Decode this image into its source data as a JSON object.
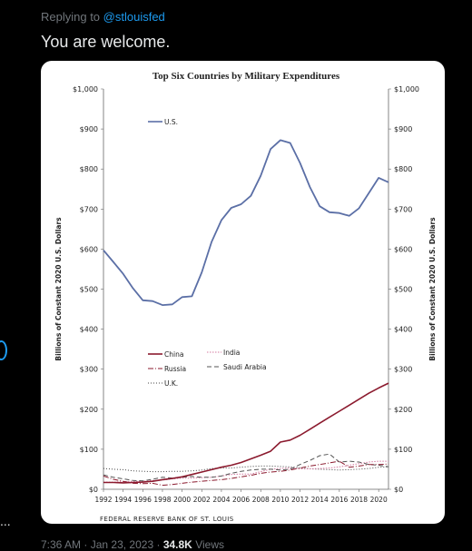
{
  "tweet": {
    "reply_prefix": "Replying to",
    "reply_handle": "@stlouisfed",
    "text": "You are welcome.",
    "time": "7:36 AM",
    "sep": "·",
    "date": "Jan 23, 2023",
    "views_count": "34.8K",
    "views_label": "Views",
    "side_ellipsis": "..."
  },
  "figure_credit": "FEDERAL RESERVE BANK OF ST. LOUIS",
  "colors": {
    "background": "#000000",
    "link": "#1d9bf0",
    "us": "#5b6fa6",
    "china": "#8b1a2e",
    "russia": "#8b1a2e",
    "india": "#d47aa0",
    "uk": "#444444",
    "saudi": "#555555"
  },
  "chart_data": {
    "type": "line",
    "title": "Top Six Countries by Military Expenditures",
    "xlabel": "",
    "ylabel": "Billions of Constant 2020 U.S. Dollars",
    "ylim": [
      0,
      1000
    ],
    "xlim": [
      1992,
      2021
    ],
    "yticks": [
      "$0",
      "$100",
      "$200",
      "$300",
      "$400",
      "$500",
      "$600",
      "$700",
      "$800",
      "$900",
      "$1,000"
    ],
    "xticks": [
      1992,
      1994,
      1996,
      1998,
      2000,
      2002,
      2004,
      2006,
      2008,
      2010,
      2012,
      2014,
      2016,
      2018,
      2020
    ],
    "series": [
      {
        "name": "U.S.",
        "style": "solid",
        "x": [
          1992,
          1993,
          1994,
          1995,
          1996,
          1997,
          1998,
          1999,
          2000,
          2001,
          2002,
          2003,
          2004,
          2005,
          2006,
          2007,
          2008,
          2009,
          2010,
          2011,
          2012,
          2013,
          2014,
          2015,
          2016,
          2017,
          2018,
          2019,
          2020,
          2021
        ],
        "values": [
          597,
          568,
          538,
          502,
          472,
          470,
          460,
          462,
          480,
          482,
          542,
          618,
          672,
          703,
          712,
          733,
          783,
          850,
          872,
          865,
          815,
          755,
          707,
          692,
          690,
          683,
          702,
          740,
          778,
          767
        ]
      },
      {
        "name": "China",
        "style": "solid",
        "x": [
          1992,
          1993,
          1994,
          1995,
          1996,
          1997,
          1998,
          1999,
          2000,
          2001,
          2002,
          2003,
          2004,
          2005,
          2006,
          2007,
          2008,
          2009,
          2010,
          2011,
          2012,
          2013,
          2014,
          2015,
          2016,
          2017,
          2018,
          2019,
          2020,
          2021
        ],
        "values": [
          17,
          17,
          16,
          17,
          18,
          20,
          24,
          27,
          31,
          37,
          43,
          49,
          55,
          60,
          67,
          76,
          85,
          95,
          118,
          123,
          135,
          150,
          165,
          180,
          195,
          210,
          225,
          240,
          253,
          265
        ]
      },
      {
        "name": "Russia",
        "style": "dashdot",
        "x": [
          1992,
          1993,
          1994,
          1995,
          1996,
          1997,
          1998,
          1999,
          2000,
          2001,
          2002,
          2003,
          2004,
          2005,
          2006,
          2007,
          2008,
          2009,
          2010,
          2011,
          2012,
          2013,
          2014,
          2015,
          2016,
          2017,
          2018,
          2019,
          2020,
          2021
        ],
        "values": [
          33,
          25,
          20,
          15,
          14,
          15,
          10,
          12,
          15,
          18,
          20,
          22,
          24,
          27,
          31,
          35,
          40,
          43,
          45,
          48,
          53,
          58,
          62,
          66,
          70,
          55,
          58,
          62,
          62,
          63
        ]
      },
      {
        "name": "India",
        "style": "dotted",
        "x": [
          1992,
          1993,
          1994,
          1995,
          1996,
          1997,
          1998,
          1999,
          2000,
          2001,
          2002,
          2003,
          2004,
          2005,
          2006,
          2007,
          2008,
          2009,
          2010,
          2011,
          2012,
          2013,
          2014,
          2015,
          2016,
          2017,
          2018,
          2019,
          2020,
          2021
        ],
        "values": [
          18,
          18,
          19,
          20,
          20,
          22,
          23,
          26,
          28,
          28,
          29,
          30,
          33,
          37,
          38,
          38,
          44,
          50,
          52,
          53,
          51,
          51,
          52,
          53,
          56,
          60,
          64,
          68,
          70,
          70
        ]
      },
      {
        "name": "U.K.",
        "style": "dotted",
        "x": [
          1992,
          1993,
          1994,
          1995,
          1996,
          1997,
          1998,
          1999,
          2000,
          2001,
          2002,
          2003,
          2004,
          2005,
          2006,
          2007,
          2008,
          2009,
          2010,
          2011,
          2012,
          2013,
          2014,
          2015,
          2016,
          2017,
          2018,
          2019,
          2020,
          2021
        ],
        "values": [
          52,
          50,
          49,
          46,
          45,
          44,
          44,
          45,
          45,
          46,
          48,
          52,
          53,
          53,
          55,
          57,
          58,
          58,
          57,
          56,
          54,
          51,
          50,
          49,
          48,
          49,
          50,
          52,
          55,
          56
        ]
      },
      {
        "name": "Saudi Arabia",
        "style": "dashed",
        "x": [
          1992,
          1993,
          1994,
          1995,
          1996,
          1997,
          1998,
          1999,
          2000,
          2001,
          2002,
          2003,
          2004,
          2005,
          2006,
          2007,
          2008,
          2009,
          2010,
          2011,
          2012,
          2013,
          2014,
          2015,
          2016,
          2017,
          2018,
          2019,
          2020,
          2021
        ],
        "values": [
          36,
          30,
          26,
          22,
          21,
          25,
          30,
          28,
          30,
          32,
          30,
          30,
          33,
          40,
          45,
          48,
          50,
          50,
          48,
          50,
          62,
          72,
          84,
          88,
          68,
          70,
          68,
          62,
          60,
          56
        ]
      }
    ],
    "legend": [
      {
        "label": "U.S.",
        "position": "top-left"
      },
      {
        "label": "China",
        "position": "lower-left"
      },
      {
        "label": "India",
        "position": "lower-center"
      },
      {
        "label": "Russia",
        "position": "lower-left"
      },
      {
        "label": "Saudi Arabia",
        "position": "lower-center"
      },
      {
        "label": "U.K.",
        "position": "lower-left"
      }
    ],
    "grid": false
  }
}
